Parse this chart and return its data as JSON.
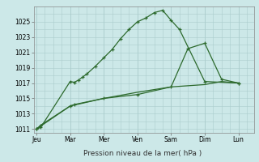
{
  "background_color": "#cce8e8",
  "grid_color": "#aacccc",
  "line_color": "#2d6a2d",
  "title": "Pression niveau de la mer( hPa )",
  "x_labels": [
    "Jeu",
    "Mar",
    "Mer",
    "Ven",
    "Sam",
    "Dim",
    "Lun"
  ],
  "x_ticks": [
    0,
    24,
    48,
    72,
    96,
    120,
    144
  ],
  "xlim": [
    -2,
    155
  ],
  "ylim": [
    1010.5,
    1027.0
  ],
  "yticks": [
    1011,
    1013,
    1015,
    1017,
    1019,
    1021,
    1023,
    1025
  ],
  "line1_x": [
    0,
    3,
    24,
    27,
    30,
    33,
    36,
    42,
    48,
    54,
    60,
    66,
    72,
    78,
    84,
    90,
    96,
    102,
    120,
    144
  ],
  "line1_y": [
    1011.0,
    1011.2,
    1017.2,
    1017.1,
    1017.4,
    1017.8,
    1018.2,
    1019.2,
    1020.3,
    1021.4,
    1022.8,
    1024.0,
    1025.0,
    1025.5,
    1026.2,
    1026.5,
    1025.2,
    1024.0,
    1017.2,
    1017.0
  ],
  "line2_x": [
    0,
    3,
    24,
    27,
    48,
    72,
    96,
    108,
    120,
    132,
    144
  ],
  "line2_y": [
    1011.0,
    1011.5,
    1014.0,
    1014.2,
    1015.0,
    1015.5,
    1016.5,
    1021.5,
    1022.2,
    1017.5,
    1017.0
  ],
  "line3_x": [
    0,
    24,
    48,
    72,
    96,
    120,
    132,
    144
  ],
  "line3_y": [
    1011.0,
    1014.0,
    1015.0,
    1015.8,
    1016.5,
    1016.8,
    1017.2,
    1017.0
  ]
}
